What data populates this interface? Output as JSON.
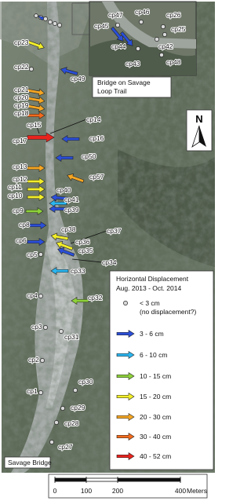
{
  "map": {
    "points": [
      "cp23",
      "cp22",
      "cp49",
      "cp21",
      "cp20",
      "cp19",
      "cp18",
      "cp15",
      "cp17",
      "cp14",
      "cp16",
      "cp50",
      "cp13",
      "cp57",
      "cp12",
      "cp11",
      "cp10",
      "cp40",
      "cp41",
      "cp9",
      "cp39",
      "cp8",
      "cp38",
      "cp37",
      "cp6",
      "cp36",
      "cp35",
      "cp5",
      "cp34",
      "cp33",
      "cp4",
      "cp32",
      "cp3",
      "cp31",
      "cp2",
      "cp30",
      "cp1",
      "cp29",
      "cp28",
      "cp27"
    ],
    "inset_points": [
      "cp47",
      "cp46",
      "cp45",
      "cp44",
      "cp26",
      "cp25",
      "cp42",
      "cp43",
      "cp48"
    ],
    "inset_label": [
      "Bridge on Savage",
      "Loop Trail"
    ],
    "bridge_label": "Savage Bridge",
    "north": "N",
    "legend": {
      "title": "Horizontal Displacement",
      "subtitle": "Aug. 2013 - Oct. 2014",
      "note": "(no displacement?)",
      "items": [
        "< 3 cm",
        "3 - 6 cm",
        "6 - 10 cm",
        "10 - 15 cm",
        "15 - 20 cm",
        "20 - 30 cm",
        "30 - 40 cm",
        "40 - 52 cm"
      ],
      "colors": [
        "#d9d9d9",
        "#2b4fd8",
        "#2bb6f0",
        "#8ed13a",
        "#f2ee2a",
        "#f5a623",
        "#f26b1d",
        "#e8231d"
      ]
    },
    "scale": {
      "ticks": [
        0,
        100,
        200,
        400
      ],
      "unit": "Meters"
    }
  }
}
